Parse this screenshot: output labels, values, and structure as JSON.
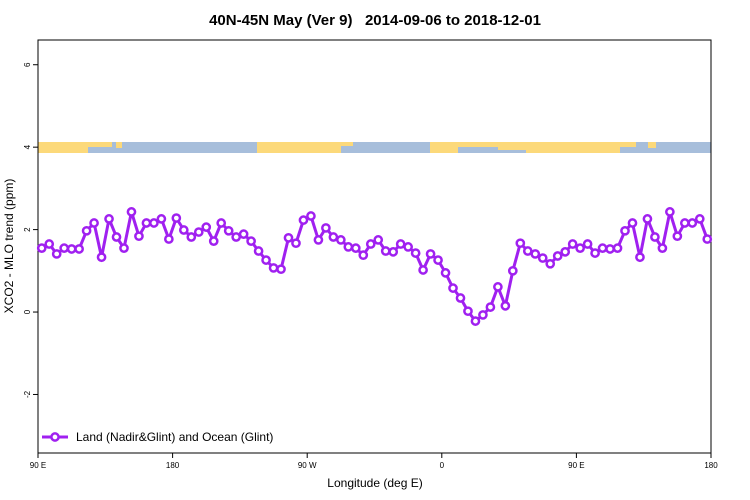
{
  "chart_data": {
    "type": "line",
    "title": "40N-45N May (Ver 9)   2014-09-06 to 2018-12-01",
    "x_label": "Longitude (deg E)",
    "y_label": "XCO2 - MLO trend (ppm)",
    "x": [
      92.5,
      97.5,
      102.5,
      107.5,
      112.5,
      117.5,
      122.5,
      127.5,
      132.5,
      137.5,
      142.5,
      147.5,
      152.5,
      157.5,
      162.5,
      167.5,
      172.5,
      177.5,
      182.5,
      187.5,
      192.5,
      197.5,
      202.5,
      207.5,
      212.5,
      217.5,
      222.5,
      227.5,
      232.5,
      237.5,
      242.5,
      247.5,
      252.5,
      257.5,
      262.5,
      267.5,
      272.5,
      277.5,
      282.5,
      287.5,
      292.5,
      297.5,
      302.5,
      307.5,
      312.5,
      317.5,
      322.5,
      327.5,
      332.5,
      337.5,
      342.5,
      347.5,
      352.5,
      357.5,
      362.5,
      367.5,
      372.5,
      377.5,
      382.5,
      387.5,
      392.5,
      397.5,
      402.5,
      407.5,
      412.5,
      417.5,
      422.5,
      427.5,
      432.5,
      437.5,
      442.5,
      447.5,
      452.5,
      457.5,
      462.5,
      467.5,
      472.5,
      477.5,
      482.5,
      487.5,
      492.5,
      497.5,
      502.5,
      507.5,
      512.5,
      517.5,
      522.5,
      527.5,
      532.5,
      537.5
    ],
    "series": [
      {
        "name": "Land (Nadir&Glint) and Ocean (Glint)",
        "color": "#a020f0",
        "values": [
          1.55,
          1.65,
          1.41,
          1.55,
          1.53,
          1.53,
          1.97,
          2.16,
          1.33,
          2.26,
          1.82,
          1.55,
          2.43,
          1.84,
          2.16,
          2.16,
          2.26,
          1.77,
          2.28,
          1.99,
          1.82,
          1.94,
          2.06,
          1.72,
          2.16,
          1.97,
          1.82,
          1.89,
          1.72,
          1.48,
          1.26,
          1.07,
          1.04,
          1.8,
          1.67,
          2.23,
          2.33,
          1.75,
          2.04,
          1.82,
          1.75,
          1.58,
          1.55,
          1.38,
          1.65,
          1.75,
          1.48,
          1.46,
          1.65,
          1.58,
          1.43,
          1.02,
          1.41,
          1.26,
          0.95,
          0.58,
          0.34,
          0.02,
          -0.22,
          -0.07,
          0.12,
          0.61,
          0.15,
          1.0,
          1.67,
          1.48,
          1.41,
          1.31,
          1.17,
          1.36,
          1.46,
          1.65,
          1.55,
          1.65,
          1.43,
          1.55,
          1.53,
          1.55,
          1.97,
          2.16,
          1.33,
          2.26,
          1.82,
          1.55,
          2.43,
          1.84,
          2.16,
          2.16,
          2.26,
          1.77
        ]
      }
    ],
    "xlim": [
      90,
      540
    ],
    "xticks": [
      {
        "value": 90,
        "label": "90 E"
      },
      {
        "value": 180,
        "label": "180"
      },
      {
        "value": 270,
        "label": "90 W"
      },
      {
        "value": 360,
        "label": "0"
      },
      {
        "value": 450,
        "label": "90 E"
      },
      {
        "value": 540,
        "label": "180"
      }
    ],
    "ylim": [
      -3.42,
      6.6
    ],
    "yticks": [
      -2,
      0,
      2,
      4,
      6
    ],
    "legend": "bottom-left"
  }
}
